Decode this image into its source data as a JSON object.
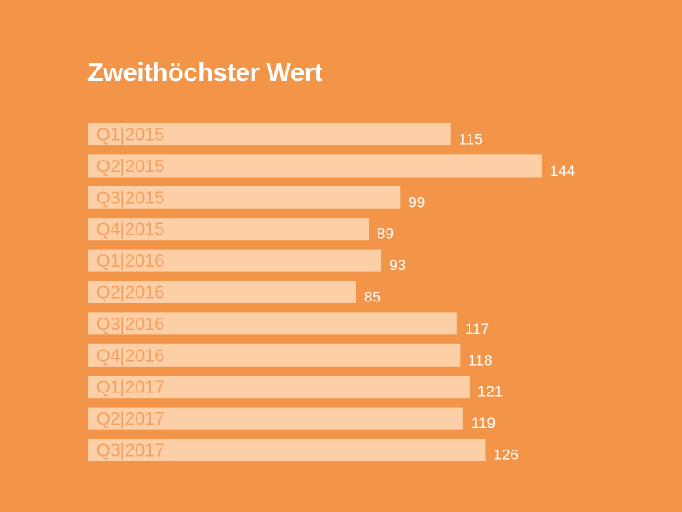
{
  "colors": {
    "background": "#F39548",
    "bar": "#FCCFA6",
    "category_text": "#F3A064",
    "value_text": "#FFFFFF",
    "title_text": "#FFFFFF"
  },
  "chart_data": {
    "type": "bar",
    "orientation": "horizontal",
    "title": "Zweithöchster Wert",
    "categories": [
      "Q1|2015",
      "Q2|2015",
      "Q3|2015",
      "Q4|2015",
      "Q1|2016",
      "Q2|2016",
      "Q3|2016",
      "Q4|2016",
      "Q1|2017",
      "Q2|2017",
      "Q3|2017"
    ],
    "values": [
      115,
      144,
      99,
      89,
      93,
      85,
      117,
      118,
      121,
      119,
      126
    ],
    "xlabel": "",
    "ylabel": "",
    "xlim": [
      0,
      144
    ],
    "grid": false,
    "legend": "none"
  }
}
